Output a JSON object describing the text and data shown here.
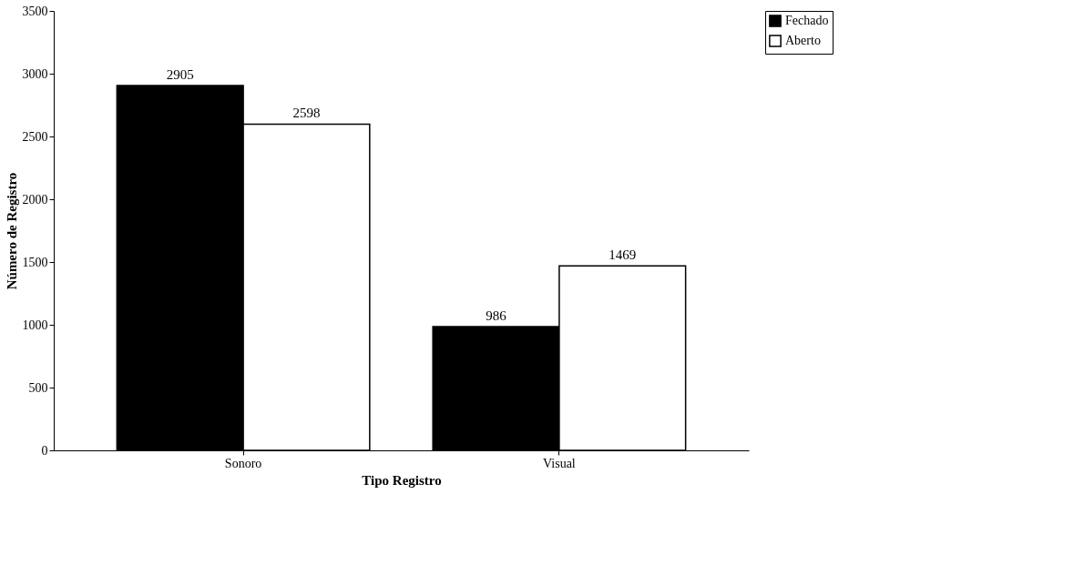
{
  "chart_data": {
    "type": "bar",
    "xlabel": "Tipo  Registro",
    "ylabel": "Número de Registro",
    "categories": [
      "Sonoro",
      "Visual"
    ],
    "series": [
      {
        "name": "Fechado",
        "color": "#000000",
        "values": [
          2905,
          986
        ]
      },
      {
        "name": "Aberto",
        "color": "#ffffff",
        "values": [
          2598,
          1469
        ]
      }
    ],
    "ylim": [
      0,
      3500
    ],
    "yticks": [
      0,
      500,
      1000,
      1500,
      2000,
      2500,
      3000,
      3500
    ],
    "grid": false,
    "legend": "right",
    "data_labels": true
  }
}
